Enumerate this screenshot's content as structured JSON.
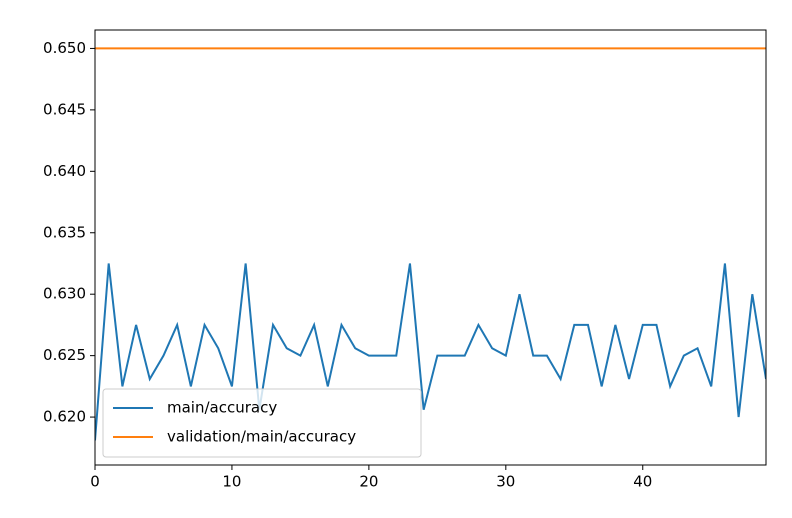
{
  "chart_data": {
    "type": "line",
    "x": [
      0,
      1,
      2,
      3,
      4,
      5,
      6,
      7,
      8,
      9,
      10,
      11,
      12,
      13,
      14,
      15,
      16,
      17,
      18,
      19,
      20,
      21,
      22,
      23,
      24,
      25,
      26,
      27,
      28,
      29,
      30,
      31,
      32,
      33,
      34,
      35,
      36,
      37,
      38,
      39,
      40,
      41,
      42,
      43,
      44,
      45,
      46,
      47,
      48,
      49
    ],
    "series": [
      {
        "name": "main/accuracy",
        "color": "#1f77b4",
        "values": [
          0.6181,
          0.6325,
          0.6225,
          0.6275,
          0.6231,
          0.625,
          0.6275,
          0.6225,
          0.6275,
          0.6256,
          0.6225,
          0.6325,
          0.6206,
          0.6275,
          0.6256,
          0.625,
          0.6275,
          0.6225,
          0.6275,
          0.6256,
          0.625,
          0.625,
          0.625,
          0.6325,
          0.6206,
          0.625,
          0.625,
          0.625,
          0.6275,
          0.6256,
          0.625,
          0.63,
          0.625,
          0.625,
          0.6231,
          0.6275,
          0.6275,
          0.6225,
          0.6275,
          0.6231,
          0.6275,
          0.6275,
          0.6225,
          0.625,
          0.6256,
          0.6225,
          0.6325,
          0.62,
          0.63,
          0.6231
        ]
      },
      {
        "name": "validation/main/accuracy",
        "color": "#ff7f0e",
        "values": [
          0.65,
          0.65,
          0.65,
          0.65,
          0.65,
          0.65,
          0.65,
          0.65,
          0.65,
          0.65,
          0.65,
          0.65,
          0.65,
          0.65,
          0.65,
          0.65,
          0.65,
          0.65,
          0.65,
          0.65,
          0.65,
          0.65,
          0.65,
          0.65,
          0.65,
          0.65,
          0.65,
          0.65,
          0.65,
          0.65,
          0.65,
          0.65,
          0.65,
          0.65,
          0.65,
          0.65,
          0.65,
          0.65,
          0.65,
          0.65,
          0.65,
          0.65,
          0.65,
          0.65,
          0.65,
          0.65,
          0.65,
          0.65,
          0.65,
          0.65
        ]
      }
    ],
    "xlim": [
      0,
      49
    ],
    "xticks": [
      0,
      10,
      20,
      30,
      40
    ],
    "ylim": [
      0.6161,
      0.6515
    ],
    "yticks": [
      {
        "value": 0.62,
        "label": "0.620"
      },
      {
        "value": 0.625,
        "label": "0.625"
      },
      {
        "value": 0.63,
        "label": "0.630"
      },
      {
        "value": 0.635,
        "label": "0.635"
      },
      {
        "value": 0.64,
        "label": "0.640"
      },
      {
        "value": 0.645,
        "label": "0.645"
      },
      {
        "value": 0.65,
        "label": "0.650"
      }
    ],
    "grid": false,
    "legend": "lower left"
  }
}
